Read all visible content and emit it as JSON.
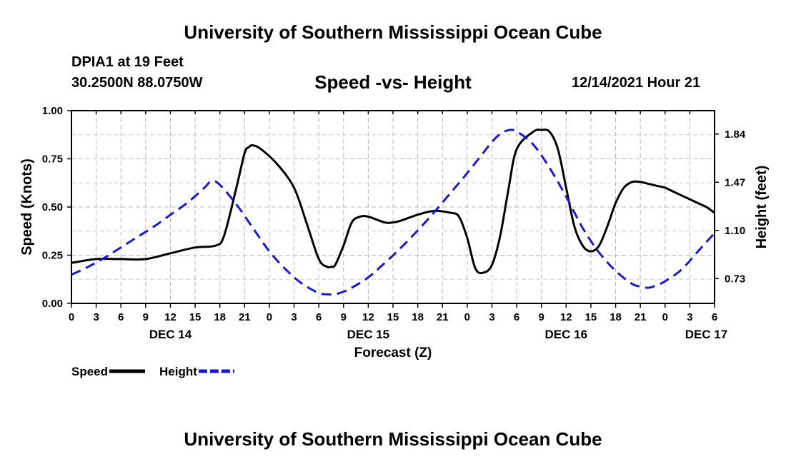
{
  "header": {
    "title": "University of Southern Mississippi Ocean Cube",
    "station": "DPIA1 at 19 Feet",
    "coordinates": "30.2500N  88.0750W",
    "chart_title": "Speed -vs- Height",
    "datetime": "12/14/2021 Hour 21"
  },
  "footer": {
    "title": "University of Southern Mississippi Ocean Cube"
  },
  "chart_data": {
    "type": "line",
    "title": "Speed -vs- Height",
    "xlabel": "Forecast (Z)",
    "ylabel": "Speed (Knots)",
    "y2label": "Height (feet)",
    "xlim": [
      0,
      78
    ],
    "ylim": [
      0,
      1.0
    ],
    "y2lim": [
      0.54,
      2.02
    ],
    "grid": true,
    "x_ticks": [
      0,
      3,
      6,
      9,
      12,
      15,
      18,
      21,
      24,
      27,
      30,
      33,
      36,
      39,
      42,
      45,
      48,
      51,
      54,
      57,
      60,
      63,
      66,
      69,
      72,
      75,
      78
    ],
    "x_tick_labels": [
      "0",
      "3",
      "6",
      "9",
      "12",
      "15",
      "18",
      "21",
      "0",
      "3",
      "6",
      "9",
      "12",
      "15",
      "18",
      "21",
      "0",
      "3",
      "6",
      "9",
      "12",
      "15",
      "18",
      "21",
      "0",
      "3",
      "6"
    ],
    "day_labels": [
      {
        "x": 12,
        "label": "DEC 14"
      },
      {
        "x": 36,
        "label": "DEC 15"
      },
      {
        "x": 60,
        "label": "DEC 16"
      },
      {
        "x": 77,
        "label": "DEC 17"
      }
    ],
    "y_ticks": [
      0,
      0.25,
      0.5,
      0.75,
      1.0
    ],
    "y_tick_labels": [
      "0.00",
      "0.25",
      "0.50",
      "0.75",
      "1.00"
    ],
    "y2_ticks": [
      0.73,
      1.1,
      1.47,
      1.84
    ],
    "y2_tick_labels": [
      "0.73",
      "1.10",
      "1.47",
      "1.84"
    ],
    "legend": "bottom-left",
    "series": [
      {
        "name": "Speed",
        "axis": "left",
        "color": "#000000",
        "dash": "solid",
        "x": [
          0,
          3,
          6,
          9,
          12,
          15,
          17.5,
          18.5,
          20,
          21,
          21.5,
          22,
          23,
          25,
          27,
          28.5,
          30,
          31,
          31.5,
          32,
          33,
          34,
          35,
          36,
          38,
          39,
          40,
          42,
          44,
          46,
          47,
          48,
          49,
          50,
          51,
          52,
          53,
          54,
          56,
          57,
          58,
          59,
          60,
          61,
          62,
          63,
          64,
          65,
          66,
          67,
          68,
          69,
          70,
          71,
          72,
          73,
          74,
          75,
          76,
          77,
          78
        ],
        "y": [
          0.21,
          0.23,
          0.23,
          0.23,
          0.26,
          0.29,
          0.3,
          0.35,
          0.6,
          0.78,
          0.81,
          0.82,
          0.8,
          0.72,
          0.6,
          0.42,
          0.23,
          0.19,
          0.19,
          0.2,
          0.3,
          0.42,
          0.45,
          0.45,
          0.42,
          0.42,
          0.43,
          0.46,
          0.48,
          0.47,
          0.45,
          0.34,
          0.18,
          0.16,
          0.2,
          0.35,
          0.59,
          0.8,
          0.89,
          0.9,
          0.89,
          0.8,
          0.6,
          0.4,
          0.3,
          0.27,
          0.3,
          0.4,
          0.52,
          0.6,
          0.63,
          0.63,
          0.62,
          0.61,
          0.6,
          0.58,
          0.56,
          0.54,
          0.52,
          0.5,
          0.47
        ]
      },
      {
        "name": "Height",
        "axis": "right",
        "color": "#1a1acc",
        "dash": "dashed",
        "x": [
          0,
          2,
          4,
          6,
          8,
          10,
          12,
          14,
          16,
          17,
          18,
          20,
          22,
          24,
          26,
          28,
          30,
          31,
          32,
          33,
          34,
          36,
          38,
          40,
          42,
          44,
          46,
          48,
          50,
          51,
          52,
          53,
          54,
          56,
          58,
          60,
          62,
          64,
          66,
          68,
          69,
          70,
          71,
          72,
          74,
          76,
          78
        ],
        "y": [
          0.76,
          0.82,
          0.89,
          0.97,
          1.05,
          1.13,
          1.22,
          1.31,
          1.42,
          1.48,
          1.45,
          1.3,
          1.12,
          0.94,
          0.8,
          0.69,
          0.62,
          0.61,
          0.61,
          0.63,
          0.66,
          0.74,
          0.85,
          0.97,
          1.1,
          1.24,
          1.39,
          1.54,
          1.7,
          1.78,
          1.84,
          1.87,
          1.86,
          1.76,
          1.58,
          1.36,
          1.12,
          0.93,
          0.79,
          0.69,
          0.67,
          0.66,
          0.68,
          0.71,
          0.8,
          0.94,
          1.08
        ]
      }
    ]
  }
}
